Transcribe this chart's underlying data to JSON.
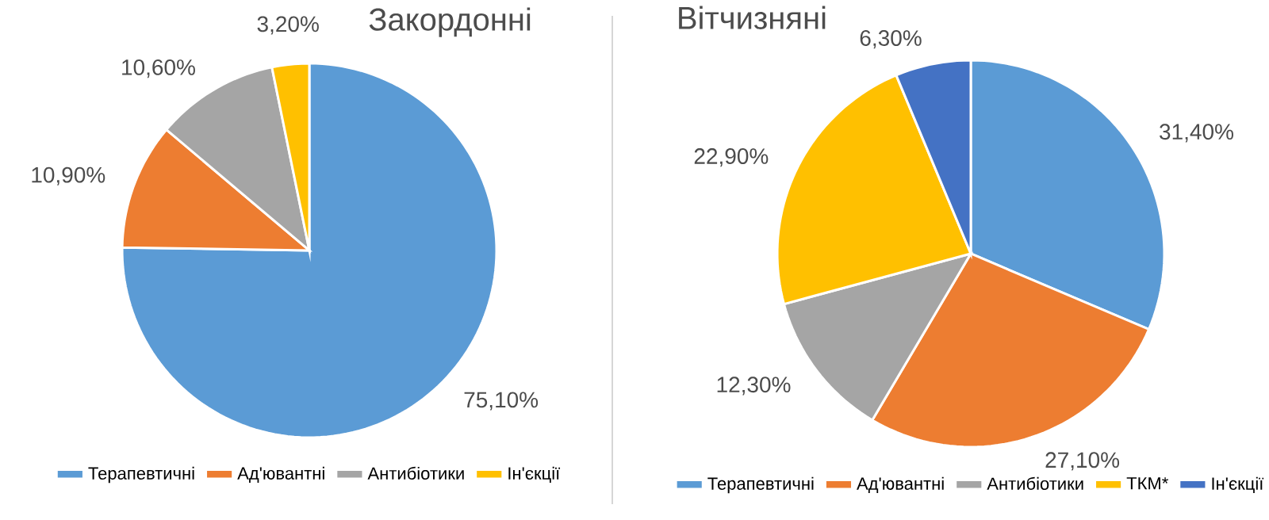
{
  "chart_data": [
    {
      "type": "pie",
      "title": "Закордонні",
      "categories": [
        "Терапевтичні",
        "Ад'ювантні",
        "Антибіотики",
        "Ін'єкції"
      ],
      "values": [
        75.1,
        10.9,
        10.6,
        3.2
      ],
      "value_labels": [
        "75,10%",
        "10,90%",
        "10,60%",
        "3,20%"
      ],
      "colors": [
        "#5b9bd5",
        "#ed7d31",
        "#a5a5a5",
        "#ffc000"
      ],
      "legend": "bottom"
    },
    {
      "type": "pie",
      "title": "Вітчизняні",
      "categories": [
        "Терапевтичні",
        "Ад'ювантні",
        "Антибіотики",
        "ТКМ*",
        "Ін'єкції"
      ],
      "values": [
        31.4,
        27.1,
        12.3,
        22.9,
        6.3
      ],
      "value_labels": [
        "31,40%",
        "27,10%",
        "12,30%",
        "22,90%",
        "6,30%"
      ],
      "colors": [
        "#5b9bd5",
        "#ed7d31",
        "#a5a5a5",
        "#ffc000",
        "#4472c4"
      ],
      "legend": "bottom"
    }
  ]
}
